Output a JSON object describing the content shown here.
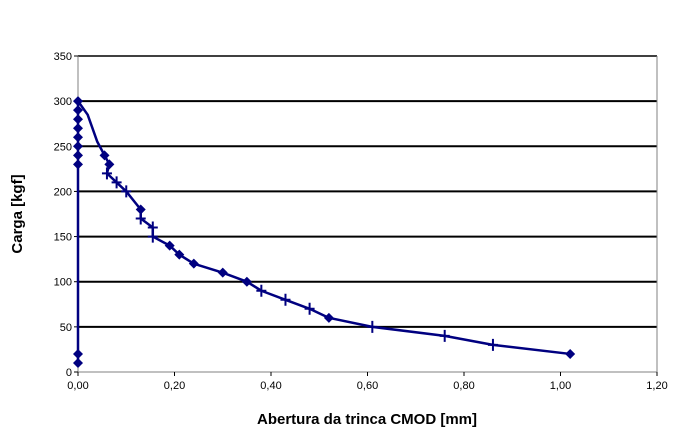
{
  "chart_data": {
    "type": "line",
    "title": "",
    "xlabel": "Abertura da trinca CMOD [mm]",
    "ylabel": "Carga [kgf]",
    "xlim": [
      0,
      1.2
    ],
    "ylim": [
      0,
      350
    ],
    "grid": "horizontal",
    "xticks": [
      "0,00",
      "0,20",
      "0,40",
      "0,60",
      "0,80",
      "1,00",
      "1,20"
    ],
    "yticks": [
      "0",
      "50",
      "100",
      "150",
      "200",
      "250",
      "300",
      "350"
    ],
    "line_color": "#000080",
    "path": [
      [
        0,
        10
      ],
      [
        0,
        20
      ],
      [
        0,
        230
      ],
      [
        0,
        240
      ],
      [
        0,
        250
      ],
      [
        0,
        260
      ],
      [
        0,
        270
      ],
      [
        0,
        280
      ],
      [
        0,
        290
      ],
      [
        0,
        300
      ],
      [
        0.02,
        285
      ],
      [
        0.04,
        255
      ],
      [
        0.055,
        240
      ],
      [
        0.065,
        230
      ],
      [
        0.06,
        220
      ],
      [
        0.08,
        210
      ],
      [
        0.1,
        200
      ],
      [
        0.13,
        180
      ],
      [
        0.13,
        170
      ],
      [
        0.155,
        160
      ],
      [
        0.155,
        150
      ],
      [
        0.19,
        140
      ],
      [
        0.21,
        130
      ],
      [
        0.24,
        120
      ],
      [
        0.3,
        110
      ],
      [
        0.35,
        100
      ],
      [
        0.38,
        90
      ],
      [
        0.43,
        80
      ],
      [
        0.48,
        70
      ],
      [
        0.52,
        60
      ],
      [
        0.61,
        50
      ],
      [
        0.76,
        40
      ],
      [
        0.86,
        30
      ],
      [
        1.02,
        20
      ]
    ],
    "series": [
      {
        "name": "diamond",
        "marker": "diamond",
        "points": [
          [
            0,
            10
          ],
          [
            0,
            20
          ],
          [
            0,
            230
          ],
          [
            0,
            240
          ],
          [
            0,
            250
          ],
          [
            0,
            260
          ],
          [
            0,
            270
          ],
          [
            0,
            280
          ],
          [
            0,
            290
          ],
          [
            0,
            300
          ],
          [
            0.055,
            240
          ],
          [
            0.065,
            230
          ],
          [
            0.13,
            180
          ],
          [
            0.19,
            140
          ],
          [
            0.21,
            130
          ],
          [
            0.24,
            120
          ],
          [
            0.3,
            110
          ],
          [
            0.35,
            100
          ],
          [
            0.52,
            60
          ],
          [
            1.02,
            20
          ]
        ]
      },
      {
        "name": "plus",
        "marker": "plus",
        "points": [
          [
            0.06,
            220
          ],
          [
            0.08,
            210
          ],
          [
            0.1,
            200
          ],
          [
            0.13,
            170
          ],
          [
            0.155,
            160
          ],
          [
            0.155,
            150
          ],
          [
            0.38,
            90
          ],
          [
            0.43,
            80
          ],
          [
            0.48,
            70
          ],
          [
            0.61,
            50
          ],
          [
            0.76,
            40
          ],
          [
            0.86,
            30
          ]
        ]
      }
    ]
  }
}
